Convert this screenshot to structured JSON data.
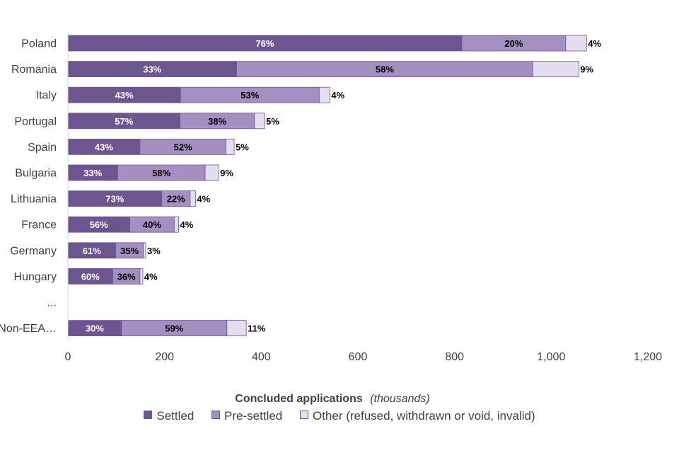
{
  "chart_data": {
    "type": "bar",
    "orientation": "horizontal",
    "stacked": true,
    "title": "",
    "xlabel": "Concluded applications",
    "xlabel_suffix": "(thousands)",
    "ylabel": "",
    "xlim": [
      0,
      1200
    ],
    "xticks": [
      0,
      200,
      400,
      600,
      800,
      1000,
      1200
    ],
    "xtick_labels": [
      "0",
      "200",
      "400",
      "600",
      "800",
      "1,000",
      "1,200"
    ],
    "grid": false,
    "legend_position": "bottom",
    "categories": [
      "Poland",
      "Romania",
      "Italy",
      "Portugal",
      "Spain",
      "Bulgaria",
      "Lithuania",
      "France",
      "Germany",
      "Hungary",
      "...",
      "Non-EEA…"
    ],
    "series": [
      {
        "name": "Settled",
        "color": "#6d5690",
        "label_color": "#ffffff",
        "values": [
          815,
          349,
          233,
          232,
          149,
          103,
          194,
          128,
          99,
          93,
          null,
          111
        ],
        "labels": [
          "76%",
          "33%",
          "43%",
          "57%",
          "43%",
          "33%",
          "73%",
          "56%",
          "61%",
          "60%",
          "",
          "30%"
        ]
      },
      {
        "name": "Pre-settled",
        "color": "#a38fc0",
        "label_color": "#000000",
        "values": [
          215,
          613,
          287,
          154,
          178,
          181,
          59,
          92,
          57,
          56,
          null,
          218
        ],
        "labels": [
          "20%",
          "58%",
          "53%",
          "38%",
          "52%",
          "58%",
          "22%",
          "40%",
          "35%",
          "36%",
          "",
          "59%"
        ]
      },
      {
        "name": "Other (refused, withdrawn or void, invalid)",
        "color": "#e4deee",
        "label_color": "#000000",
        "values": [
          43,
          95,
          22,
          21,
          17,
          28,
          11,
          9,
          5,
          6,
          null,
          40
        ],
        "labels": [
          "4%",
          "9%",
          "4%",
          "5%",
          "5%",
          "9%",
          "4%",
          "4%",
          "3%",
          "4%",
          "",
          "11%"
        ]
      }
    ]
  }
}
